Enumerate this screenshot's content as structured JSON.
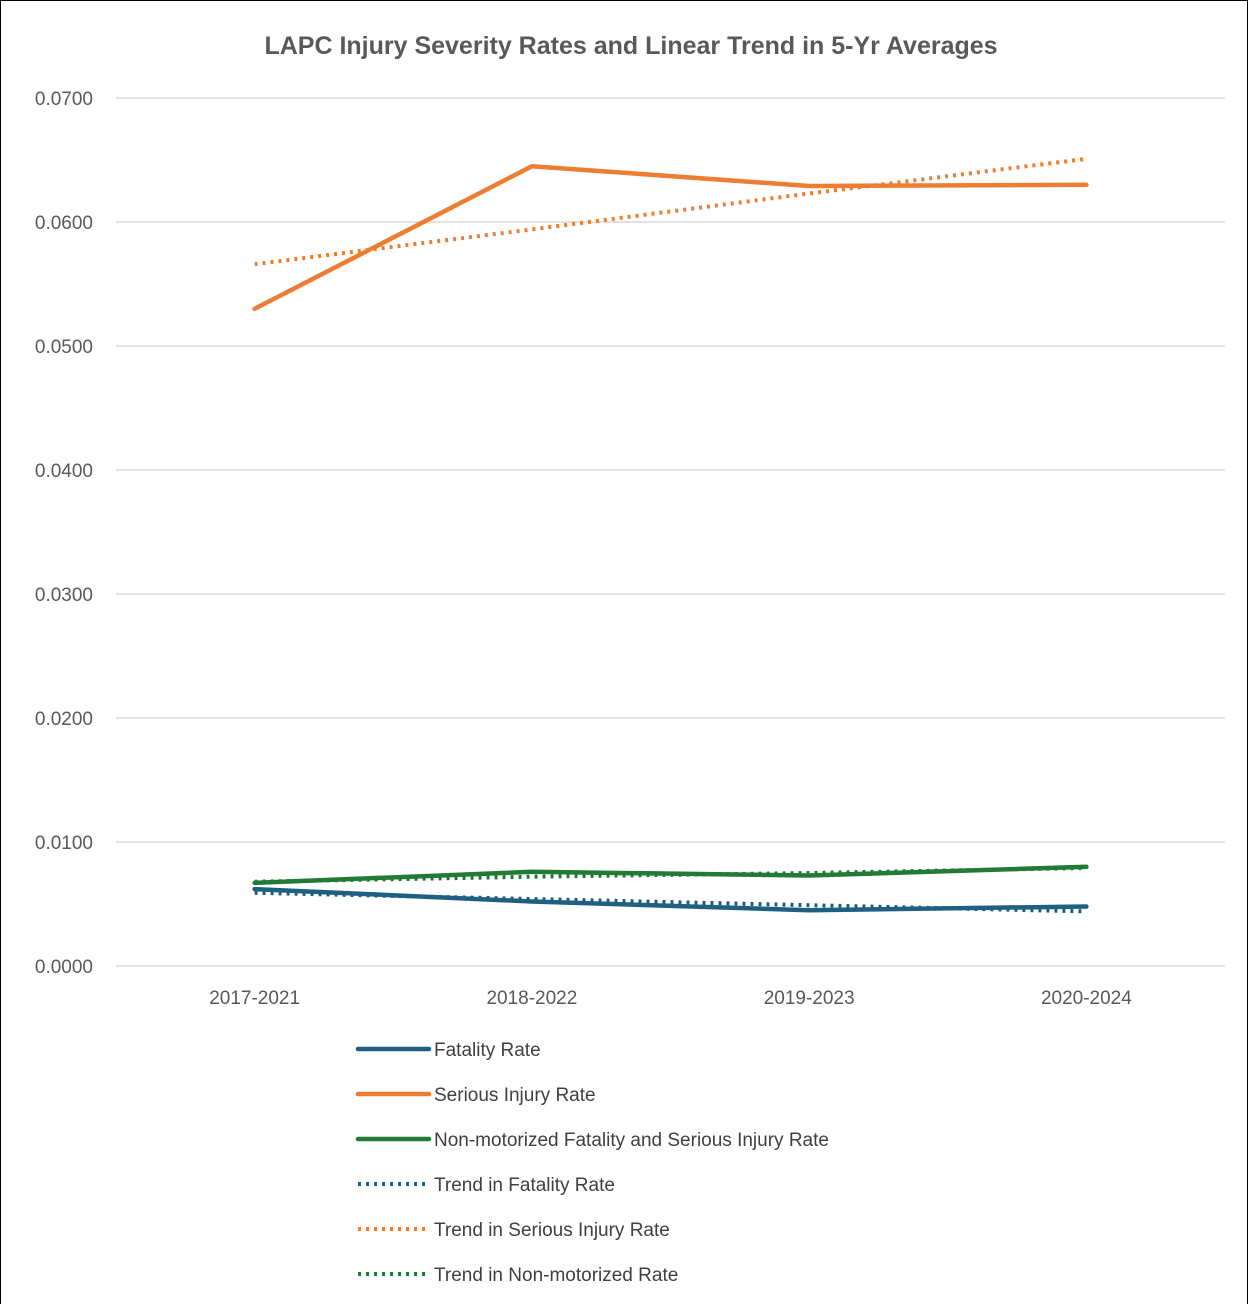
{
  "chart_data": {
    "type": "line",
    "title": "LAPC Injury Severity Rates and Linear Trend in 5-Yr Averages",
    "xlabel": "",
    "ylabel": "",
    "categories": [
      "2017-2021",
      "2018-2022",
      "2019-2023",
      "2020-2024"
    ],
    "ylim": [
      0,
      0.07
    ],
    "yticks": [
      "0.0000",
      "0.0100",
      "0.0200",
      "0.0300",
      "0.0400",
      "0.0500",
      "0.0600",
      "0.0700"
    ],
    "grid": true,
    "legend_position": "bottom",
    "series": [
      {
        "name": "Fatality Rate",
        "values": [
          0.0062,
          0.0052,
          0.0045,
          0.0048
        ],
        "color": "#1f5f82",
        "style": "solid"
      },
      {
        "name": "Serious Injury Rate",
        "values": [
          0.053,
          0.0645,
          0.0629,
          0.063
        ],
        "color": "#ed7d31",
        "style": "solid"
      },
      {
        "name": "Non-motorized Fatality and Serious Injury Rate",
        "values": [
          0.0067,
          0.0076,
          0.0073,
          0.008
        ],
        "color": "#217a35",
        "style": "solid"
      },
      {
        "name": "Trend in Fatality Rate",
        "values": [
          0.0059,
          0.0054,
          0.0049,
          0.0044
        ],
        "color": "#1f5f82",
        "style": "dotted"
      },
      {
        "name": "Trend in Serious Injury Rate",
        "values": [
          0.0566,
          0.0594,
          0.0623,
          0.0651
        ],
        "color": "#ed7d31",
        "style": "dotted"
      },
      {
        "name": "Trend in Non-motorized Rate",
        "values": [
          0.0068,
          0.0072,
          0.0075,
          0.0079
        ],
        "color": "#217a35",
        "style": "dotted"
      }
    ]
  }
}
